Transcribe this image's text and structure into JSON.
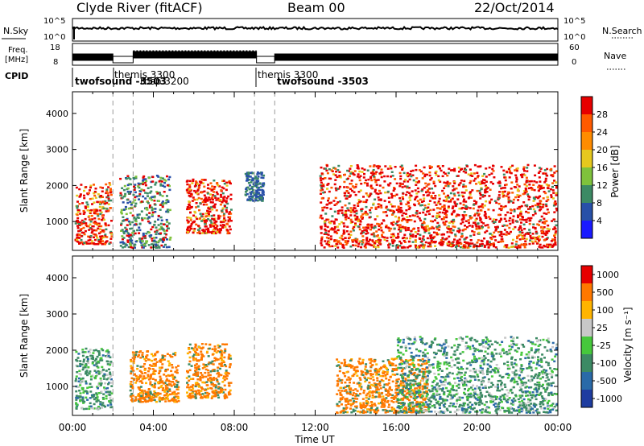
{
  "header": {
    "station": "Clyde River (fitACF)",
    "beam": "Beam 00",
    "date": "22/Oct/2014"
  },
  "noise_panel": {
    "left_label": "N.Sky",
    "left_ticks": [
      "10^5",
      "10^0"
    ],
    "right_ticks": [
      "10^5",
      "10^0"
    ],
    "right_label": "N.Search"
  },
  "freq_panel": {
    "label_line1": "Freq.",
    "label_line2": "[MHz]",
    "left_ticks": [
      "18",
      "8"
    ],
    "right_ticks": [
      "60",
      "0"
    ],
    "right_label": "Nave"
  },
  "cpid_panel": {
    "label": "CPID",
    "segments": [
      {
        "label": "twofsound -3503",
        "start_h": 0.0
      },
      {
        "label": "themis 3300",
        "start_h": 2.0
      },
      {
        "label": "rbsp 3200",
        "start_h": 2.0
      },
      {
        "label": "themis 3300",
        "start_h": 9.0
      },
      {
        "label": "twofsound -3503",
        "start_h": 10.0
      }
    ],
    "dividers_h": [
      2.0,
      9.0
    ]
  },
  "axes": {
    "ylabel": "Slant Range [km]",
    "xlabel": "Time UT",
    "x_ticks": [
      "00:00",
      "04:00",
      "08:00",
      "12:00",
      "16:00",
      "20:00",
      "00:00"
    ],
    "y_ticks": [
      "1000",
      "2000",
      "3000",
      "4000"
    ]
  },
  "power_colorbar": {
    "label": "Power [dB]",
    "ticks": [
      "4",
      "8",
      "12",
      "16",
      "20",
      "24",
      "28"
    ],
    "colors": [
      "#1a1aff",
      "#2850a8",
      "#3c8a64",
      "#7fc23c",
      "#e6c81e",
      "#ff8c00",
      "#ff5a00",
      "#e60000"
    ]
  },
  "velocity_colorbar": {
    "label": "Velocity [m s⁻¹]",
    "ticks": [
      "1000",
      "500",
      "100",
      "25",
      "-25",
      "-100",
      "-500",
      "-1000"
    ],
    "colors": [
      "#1e3ca0",
      "#2a6aa8",
      "#3c8a64",
      "#46c83c",
      "#c8c8c8",
      "#ffb400",
      "#ff7800",
      "#e60000"
    ]
  },
  "chart_data": {
    "type": "heatmap",
    "title": "Clyde River (fitACF)",
    "xlabel": "Time UT",
    "ylabel": "Slant Range [km]",
    "xlim_hours": [
      0,
      24
    ],
    "ylim_km": [
      200,
      4600
    ],
    "power_blobs": [
      {
        "t0": 0.1,
        "t1": 1.9,
        "r0": 400,
        "r1": 2100,
        "dominant": "red"
      },
      {
        "t0": 2.3,
        "t1": 4.8,
        "r0": 300,
        "r1": 2300,
        "dominant": "green"
      },
      {
        "t0": 5.6,
        "t1": 7.8,
        "r0": 700,
        "r1": 2200,
        "dominant": "red"
      },
      {
        "t0": 8.5,
        "t1": 9.4,
        "r0": 1600,
        "r1": 2400,
        "dominant": "blue"
      },
      {
        "t0": 12.2,
        "t1": 23.9,
        "r0": 300,
        "r1": 2600,
        "dominant": "red"
      }
    ],
    "velocity_blobs": [
      {
        "t0": 0.1,
        "t1": 1.9,
        "r0": 400,
        "r1": 2100,
        "dominant": "green"
      },
      {
        "t0": 2.8,
        "t1": 5.2,
        "r0": 600,
        "r1": 2000,
        "dominant": "orange"
      },
      {
        "t0": 5.6,
        "t1": 7.8,
        "r0": 700,
        "r1": 2200,
        "dominant": "orange"
      },
      {
        "t0": 13.0,
        "t1": 17.5,
        "r0": 300,
        "r1": 1800,
        "dominant": "orange"
      },
      {
        "t0": 16.0,
        "t1": 23.9,
        "r0": 300,
        "r1": 2400,
        "dominant": "green"
      }
    ]
  }
}
